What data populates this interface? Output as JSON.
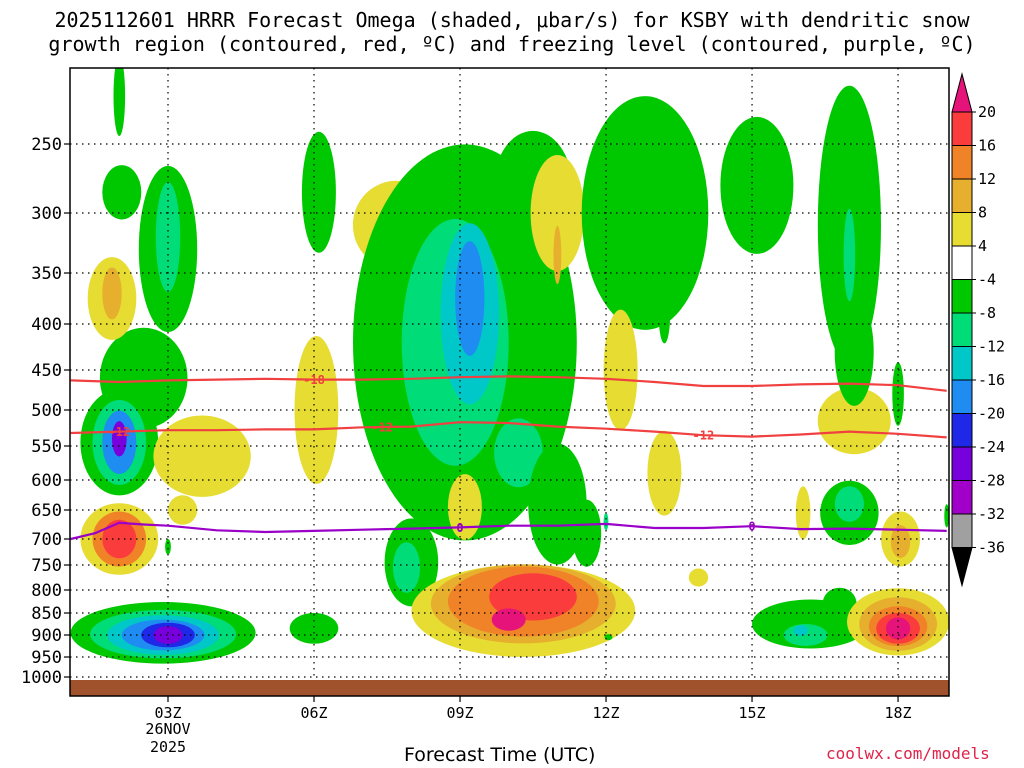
{
  "title_line1": "2025112601 HRRR Forecast Omega (shaded, μbar/s) for KSBY with dendritic snow",
  "title_line2": "growth region (contoured, red, ºC) and freezing level (contoured, purple, ºC)",
  "chart_data": {
    "type": "heatmap",
    "title": "2025112601 HRRR Forecast Omega (shaded, μbar/s) for KSBY with dendritic snow growth region (contoured, red, ºC) and freezing level (contoured, purple, ºC)",
    "xlabel": "Forecast Time (UTC)",
    "ylabel": "",
    "x_ticks": [
      {
        "hour": 3,
        "label": "03Z"
      },
      {
        "hour": 6,
        "label": "06Z"
      },
      {
        "hour": 9,
        "label": "09Z"
      },
      {
        "hour": 12,
        "label": "12Z"
      },
      {
        "hour": 15,
        "label": "15Z"
      },
      {
        "hour": 18,
        "label": "18Z"
      }
    ],
    "date_label_day": "26NOV",
    "date_label_year": "2025",
    "xlim": [
      1,
      19
    ],
    "y_ticks": [
      250,
      300,
      350,
      400,
      450,
      500,
      550,
      600,
      650,
      700,
      750,
      800,
      850,
      900,
      950,
      1000
    ],
    "ylim_hpa": [
      1000,
      200
    ],
    "grid": true,
    "colorbar": {
      "bounds": [
        -36,
        -32,
        -28,
        -24,
        -20,
        -16,
        -12,
        -8,
        -4,
        4,
        8,
        12,
        16,
        20
      ],
      "labels": [
        "20",
        "16",
        "12",
        "8",
        "4",
        "-4",
        "-8",
        "-12",
        "-16",
        "-20",
        "-24",
        "-28",
        "-32",
        "-36"
      ],
      "colors": [
        "#000000",
        "#a0a0a0",
        "#a000c8",
        "#7800dc",
        "#1e28e6",
        "#1e8cf0",
        "#00c8c8",
        "#00dc78",
        "#00c800",
        "#ffffff",
        "#e6dc32",
        "#e6af2d",
        "#f08228",
        "#fa3c3c",
        "#e6147a"
      ]
    },
    "omega_cells": [
      {
        "hour": 2.0,
        "p": 220,
        "rx": 0.12,
        "ry": 25,
        "v": -5
      },
      {
        "hour": 2.05,
        "p": 285,
        "rx": 0.4,
        "ry": 20,
        "v": -5
      },
      {
        "hour": 3.0,
        "p": 330,
        "rx": 0.6,
        "ry": 70,
        "v": -6
      },
      {
        "hour": 3.0,
        "p": 320,
        "rx": 0.25,
        "ry": 45,
        "v": -9
      },
      {
        "hour": 2.5,
        "p": 460,
        "rx": 0.9,
        "ry": 60,
        "v": -6
      },
      {
        "hour": 2.0,
        "p": 545,
        "rx": 0.8,
        "ry": 75,
        "v": -8
      },
      {
        "hour": 2.0,
        "p": 545,
        "rx": 0.55,
        "ry": 60,
        "v": -12
      },
      {
        "hour": 2.0,
        "p": 545,
        "rx": 0.35,
        "ry": 45,
        "v": -18
      },
      {
        "hour": 2.0,
        "p": 540,
        "rx": 0.15,
        "ry": 25,
        "v": -26
      },
      {
        "hour": 1.85,
        "p": 375,
        "rx": 0.5,
        "ry": 40,
        "v": 5
      },
      {
        "hour": 1.85,
        "p": 370,
        "rx": 0.2,
        "ry": 25,
        "v": 9
      },
      {
        "hour": 3.7,
        "p": 565,
        "rx": 1.0,
        "ry": 60,
        "v": 5
      },
      {
        "hour": 3.3,
        "p": 650,
        "rx": 0.3,
        "ry": 25,
        "v": 5
      },
      {
        "hour": 2.0,
        "p": 700,
        "rx": 0.8,
        "ry": 65,
        "v": 7
      },
      {
        "hour": 2.0,
        "p": 700,
        "rx": 0.55,
        "ry": 50,
        "v": 12
      },
      {
        "hour": 2.0,
        "p": 700,
        "rx": 0.35,
        "ry": 35,
        "v": 17
      },
      {
        "hour": 3.0,
        "p": 715,
        "rx": 0.06,
        "ry": 15,
        "v": -6
      },
      {
        "hour": 2.9,
        "p": 895,
        "rx": 1.9,
        "ry": 70,
        "v": -6
      },
      {
        "hour": 2.9,
        "p": 898,
        "rx": 1.5,
        "ry": 55,
        "v": -10
      },
      {
        "hour": 2.9,
        "p": 900,
        "rx": 1.15,
        "ry": 45,
        "v": -14
      },
      {
        "hour": 2.9,
        "p": 900,
        "rx": 0.85,
        "ry": 35,
        "v": -18
      },
      {
        "hour": 3.0,
        "p": 900,
        "rx": 0.55,
        "ry": 28,
        "v": -22
      },
      {
        "hour": 3.0,
        "p": 900,
        "rx": 0.3,
        "ry": 20,
        "v": -26
      },
      {
        "hour": 6.1,
        "p": 285,
        "rx": 0.35,
        "ry": 45,
        "v": -5
      },
      {
        "hour": 6.05,
        "p": 500,
        "rx": 0.45,
        "ry": 95,
        "v": 5
      },
      {
        "hour": 5.9,
        "p": 520,
        "rx": 0.2,
        "ry": 60,
        "v": 5
      },
      {
        "hour": 6.0,
        "p": 885,
        "rx": 0.5,
        "ry": 35,
        "v": -5
      },
      {
        "hour": 7.7,
        "p": 310,
        "rx": 0.9,
        "ry": 35,
        "v": 5
      },
      {
        "hour": 7.3,
        "p": 370,
        "rx": 0.3,
        "ry": 25,
        "v": 5
      },
      {
        "hour": 9.1,
        "p": 420,
        "rx": 2.3,
        "ry": 200,
        "v": -6
      },
      {
        "hour": 8.8,
        "p": 430,
        "rx": 1.8,
        "ry": 165,
        "v": -8
      },
      {
        "hour": 8.9,
        "p": 420,
        "rx": 1.1,
        "ry": 130,
        "v": -12
      },
      {
        "hour": 9.2,
        "p": 390,
        "rx": 0.6,
        "ry": 90,
        "v": -16
      },
      {
        "hour": 9.2,
        "p": 375,
        "rx": 0.3,
        "ry": 55,
        "v": -19
      },
      {
        "hour": 10.2,
        "p": 560,
        "rx": 0.5,
        "ry": 50,
        "v": -10
      },
      {
        "hour": 10.5,
        "p": 280,
        "rx": 0.8,
        "ry": 40,
        "v": -5
      },
      {
        "hour": 11.0,
        "p": 640,
        "rx": 0.6,
        "ry": 100,
        "v": -7
      },
      {
        "hour": 11.6,
        "p": 690,
        "rx": 0.3,
        "ry": 60,
        "v": -7
      },
      {
        "hour": 12.0,
        "p": 670,
        "rx": 0.05,
        "ry": 15,
        "v": -10
      },
      {
        "hour": 8.0,
        "p": 745,
        "rx": 0.55,
        "ry": 85,
        "v": -5
      },
      {
        "hour": 7.9,
        "p": 755,
        "rx": 0.28,
        "ry": 50,
        "v": -9
      },
      {
        "hour": 11.0,
        "p": 300,
        "rx": 0.55,
        "ry": 45,
        "v": 5
      },
      {
        "hour": 11.0,
        "p": 335,
        "rx": 0.08,
        "ry": 25,
        "v": 9
      },
      {
        "hour": 9.1,
        "p": 645,
        "rx": 0.35,
        "ry": 55,
        "v": 5
      },
      {
        "hour": 10.3,
        "p": 845,
        "rx": 2.3,
        "ry": 100,
        "v": 6
      },
      {
        "hour": 10.3,
        "p": 830,
        "rx": 1.9,
        "ry": 85,
        "v": 9
      },
      {
        "hour": 10.3,
        "p": 825,
        "rx": 1.55,
        "ry": 75,
        "v": 12
      },
      {
        "hour": 10.5,
        "p": 825,
        "rx": 1.2,
        "ry": 60,
        "v": 15
      },
      {
        "hour": 10.5,
        "p": 815,
        "rx": 0.9,
        "ry": 50,
        "v": 18
      },
      {
        "hour": 10.0,
        "p": 865,
        "rx": 0.35,
        "ry": 25,
        "v": 22
      },
      {
        "hour": 12.05,
        "p": 905,
        "rx": 0.08,
        "ry": 7,
        "v": -5
      },
      {
        "hour": 12.8,
        "p": 300,
        "rx": 1.3,
        "ry": 90,
        "v": -5
      },
      {
        "hour": 13.2,
        "p": 390,
        "rx": 0.12,
        "ry": 30,
        "v": -5
      },
      {
        "hour": 12.3,
        "p": 450,
        "rx": 0.35,
        "ry": 70,
        "v": 5
      },
      {
        "hour": 13.2,
        "p": 590,
        "rx": 0.35,
        "ry": 65,
        "v": 5
      },
      {
        "hour": 13.9,
        "p": 775,
        "rx": 0.2,
        "ry": 18,
        "v": 5
      },
      {
        "hour": 15.1,
        "p": 280,
        "rx": 0.75,
        "ry": 50,
        "v": -5
      },
      {
        "hour": 16.2,
        "p": 875,
        "rx": 1.2,
        "ry": 55,
        "v": -5
      },
      {
        "hour": 16.8,
        "p": 830,
        "rx": 0.35,
        "ry": 35,
        "v": -5
      },
      {
        "hour": 16.1,
        "p": 900,
        "rx": 0.45,
        "ry": 25,
        "v": -9
      },
      {
        "hour": 16.0,
        "p": 890,
        "rx": 0.15,
        "ry": 12,
        "v": -13
      },
      {
        "hour": 16.05,
        "p": 655,
        "rx": 0.15,
        "ry": 45,
        "v": 5
      },
      {
        "hour": 17.1,
        "p": 515,
        "rx": 0.75,
        "ry": 45,
        "v": 5
      },
      {
        "hour": 17.0,
        "p": 310,
        "rx": 0.65,
        "ry": 110,
        "v": -5
      },
      {
        "hour": 17.1,
        "p": 430,
        "rx": 0.4,
        "ry": 60,
        "v": -5
      },
      {
        "hour": 18.0,
        "p": 480,
        "rx": 0.12,
        "ry": 40,
        "v": -5
      },
      {
        "hour": 17.0,
        "p": 335,
        "rx": 0.12,
        "ry": 40,
        "v": -10
      },
      {
        "hour": 17.0,
        "p": 655,
        "rx": 0.6,
        "ry": 55,
        "v": -6
      },
      {
        "hour": 17.0,
        "p": 640,
        "rx": 0.3,
        "ry": 30,
        "v": -10
      },
      {
        "hour": 18.05,
        "p": 700,
        "rx": 0.4,
        "ry": 50,
        "v": 7
      },
      {
        "hour": 18.05,
        "p": 705,
        "rx": 0.2,
        "ry": 30,
        "v": 9
      },
      {
        "hour": 18.0,
        "p": 870,
        "rx": 1.05,
        "ry": 75,
        "v": 6
      },
      {
        "hour": 18.0,
        "p": 875,
        "rx": 0.8,
        "ry": 60,
        "v": 10
      },
      {
        "hour": 18.0,
        "p": 880,
        "rx": 0.6,
        "ry": 45,
        "v": 14
      },
      {
        "hour": 18.0,
        "p": 885,
        "rx": 0.45,
        "ry": 35,
        "v": 17
      },
      {
        "hour": 18.0,
        "p": 885,
        "rx": 0.25,
        "ry": 25,
        "v": 22
      },
      {
        "hour": 19.0,
        "p": 660,
        "rx": 0.05,
        "ry": 20,
        "v": -5
      }
    ],
    "contours": [
      {
        "name": "-18",
        "color": "#f04040",
        "label_hour": 6.0,
        "points": [
          [
            1,
            463
          ],
          [
            2,
            465
          ],
          [
            3,
            463
          ],
          [
            4,
            462
          ],
          [
            5,
            461
          ],
          [
            6,
            462
          ],
          [
            7,
            462
          ],
          [
            8,
            461
          ],
          [
            9,
            459
          ],
          [
            10,
            458
          ],
          [
            11,
            459
          ],
          [
            12,
            461
          ],
          [
            13,
            465
          ],
          [
            14,
            470
          ],
          [
            15,
            470
          ],
          [
            16,
            468
          ],
          [
            17,
            467
          ],
          [
            18,
            469
          ],
          [
            19,
            476
          ]
        ]
      },
      {
        "name": "-12",
        "color": "#f04040",
        "label_hour": 2.0,
        "points": [
          [
            1,
            532
          ],
          [
            2,
            530
          ],
          [
            3,
            528
          ],
          [
            4,
            528
          ],
          [
            5,
            527
          ],
          [
            6,
            527
          ],
          [
            7,
            524
          ],
          [
            8,
            523
          ],
          [
            9,
            517
          ],
          [
            10,
            518
          ],
          [
            11,
            523
          ],
          [
            12,
            526
          ],
          [
            13,
            530
          ],
          [
            14,
            535
          ],
          [
            15,
            537
          ],
          [
            16,
            534
          ],
          [
            17,
            530
          ],
          [
            18,
            533
          ],
          [
            19,
            538
          ]
        ]
      },
      {
        "name": "-12",
        "color": "#f04040",
        "label_hour": 7.4,
        "points": []
      },
      {
        "name": "-12",
        "color": "#f04040",
        "label_hour": 14.0,
        "points": []
      },
      {
        "name": "0",
        "color": "#9a00c8",
        "label_hour": 9.0,
        "points": [
          [
            1,
            700
          ],
          [
            1.5,
            690
          ],
          [
            2,
            672
          ],
          [
            2.5,
            675
          ],
          [
            3,
            677
          ],
          [
            4,
            685
          ],
          [
            5,
            688
          ],
          [
            6,
            686
          ],
          [
            7,
            684
          ],
          [
            8,
            682
          ],
          [
            9,
            680
          ],
          [
            10,
            677
          ],
          [
            11,
            677
          ],
          [
            12,
            674
          ],
          [
            13,
            681
          ],
          [
            14,
            681
          ],
          [
            15,
            678
          ],
          [
            16,
            683
          ],
          [
            17,
            682
          ],
          [
            18,
            684
          ],
          [
            19,
            686
          ]
        ]
      },
      {
        "name": "0",
        "color": "#9a00c8",
        "label_hour": 15.0,
        "points": []
      }
    ],
    "terrain_color": "#a0522d"
  },
  "credit": "coolwx.com/models"
}
